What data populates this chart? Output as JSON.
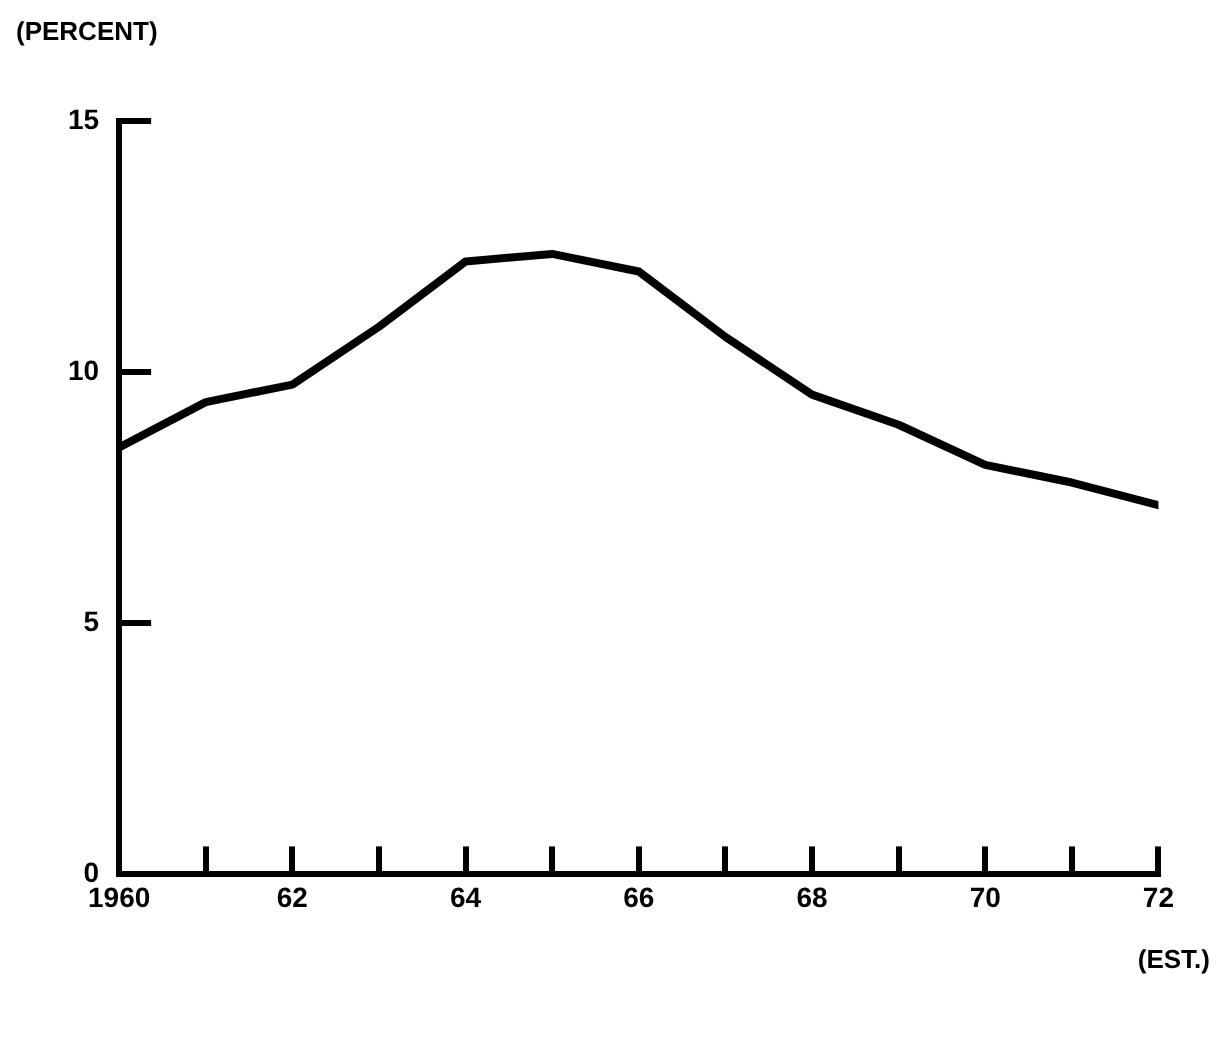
{
  "chart_data": {
    "type": "line",
    "ylabel": "(PERCENT)",
    "annotations": [
      "(EST.)"
    ],
    "x": [
      1960,
      1961,
      1962,
      1963,
      1964,
      1965,
      1966,
      1967,
      1968,
      1969,
      1970,
      1971,
      1972
    ],
    "series": [
      {
        "color": "#000000",
        "values": [
          8.5,
          9.4,
          9.75,
          10.9,
          12.2,
          12.35,
          12.0,
          10.7,
          9.55,
          8.95,
          8.15,
          7.8,
          7.35
        ]
      }
    ],
    "xlim": [
      1960,
      1972
    ],
    "xticks": [
      {
        "value": 1960,
        "label": "1960"
      },
      {
        "value": 1961,
        "label": null
      },
      {
        "value": 1962,
        "label": "62"
      },
      {
        "value": 1963,
        "label": null
      },
      {
        "value": 1964,
        "label": "64"
      },
      {
        "value": 1965,
        "label": null
      },
      {
        "value": 1966,
        "label": "66"
      },
      {
        "value": 1967,
        "label": null
      },
      {
        "value": 1968,
        "label": "68"
      },
      {
        "value": 1969,
        "label": null
      },
      {
        "value": 1970,
        "label": "70"
      },
      {
        "value": 1971,
        "label": null
      },
      {
        "value": 1972,
        "label": "72"
      }
    ],
    "ylim": [
      0,
      15
    ],
    "yticks": [
      0,
      5,
      10,
      15
    ],
    "grid": false,
    "legend": false,
    "marker": "none",
    "line_style": "solid"
  }
}
